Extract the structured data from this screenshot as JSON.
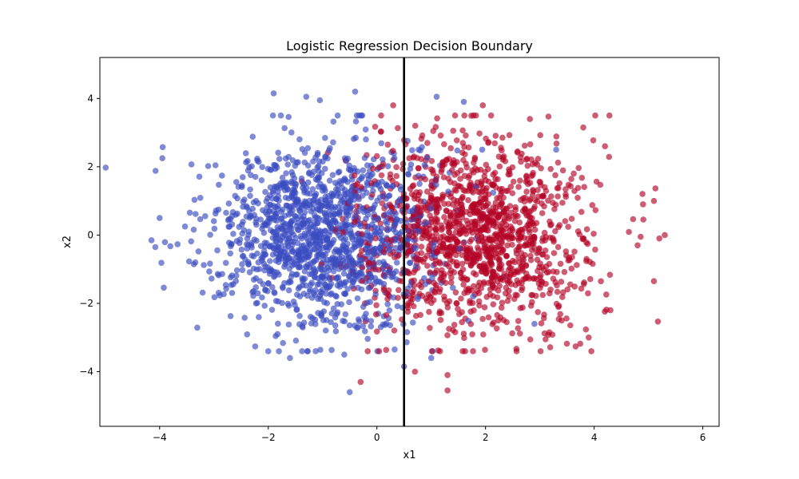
{
  "chart_data": {
    "type": "scatter",
    "title": "Logistic Regression Decision Boundary",
    "xlabel": "x1",
    "ylabel": "x2",
    "xlim": [
      -5.1,
      6.3
    ],
    "ylim": [
      -5.6,
      5.2
    ],
    "xticks": [
      -4,
      -2,
      0,
      2,
      4,
      6
    ],
    "yticks": [
      -4,
      -2,
      0,
      2,
      4
    ],
    "xtick_labels": [
      "−4",
      "−2",
      "0",
      "2",
      "4",
      "6"
    ],
    "ytick_labels": [
      "−4",
      "−2",
      "0",
      "2",
      "4"
    ],
    "grid": false,
    "legend": false,
    "marker_alpha": 0.65,
    "series": [
      {
        "color": "#3b4cc0",
        "center": [
          -1.0,
          0.0
        ],
        "spread": [
          1.0,
          1.35
        ],
        "approx_points_drawn": 1400,
        "outliers": [
          [
            -4.15,
            -0.15
          ],
          [
            -4.0,
            0.5
          ],
          [
            -3.95,
            2.25
          ],
          [
            -0.5,
            -4.6
          ],
          [
            -0.4,
            4.2
          ],
          [
            -1.9,
            4.15
          ],
          [
            -1.3,
            4.05
          ],
          [
            -1.05,
            3.95
          ],
          [
            1.1,
            4.05
          ],
          [
            1.6,
            3.9
          ],
          [
            -1.6,
            -3.6
          ],
          [
            -0.6,
            -3.5
          ],
          [
            0.5,
            -3.85
          ],
          [
            1.0,
            -3.6
          ],
          [
            3.3,
            2.5
          ],
          [
            2.9,
            -2.6
          ]
        ]
      },
      {
        "color": "#b40426",
        "center": [
          1.8,
          0.0
        ],
        "spread": [
          1.0,
          1.35
        ],
        "approx_points_drawn": 1400,
        "outliers": [
          [
            5.3,
            0.0
          ],
          [
            5.2,
            -0.1
          ],
          [
            5.1,
            1.0
          ],
          [
            5.1,
            -1.35
          ],
          [
            4.9,
            0.9
          ],
          [
            4.8,
            -0.3
          ],
          [
            4.2,
            2.6
          ],
          [
            3.8,
            3.15
          ],
          [
            1.3,
            -4.55
          ],
          [
            1.3,
            -4.1
          ],
          [
            0.7,
            -4.0
          ],
          [
            -0.3,
            -4.3
          ],
          [
            1.95,
            3.8
          ],
          [
            0.3,
            3.8
          ],
          [
            4.3,
            -2.2
          ],
          [
            3.9,
            -3.0
          ],
          [
            3.4,
            -2.5
          ]
        ]
      }
    ],
    "decision_boundary": {
      "x": 0.5,
      "color": "#000000"
    }
  }
}
